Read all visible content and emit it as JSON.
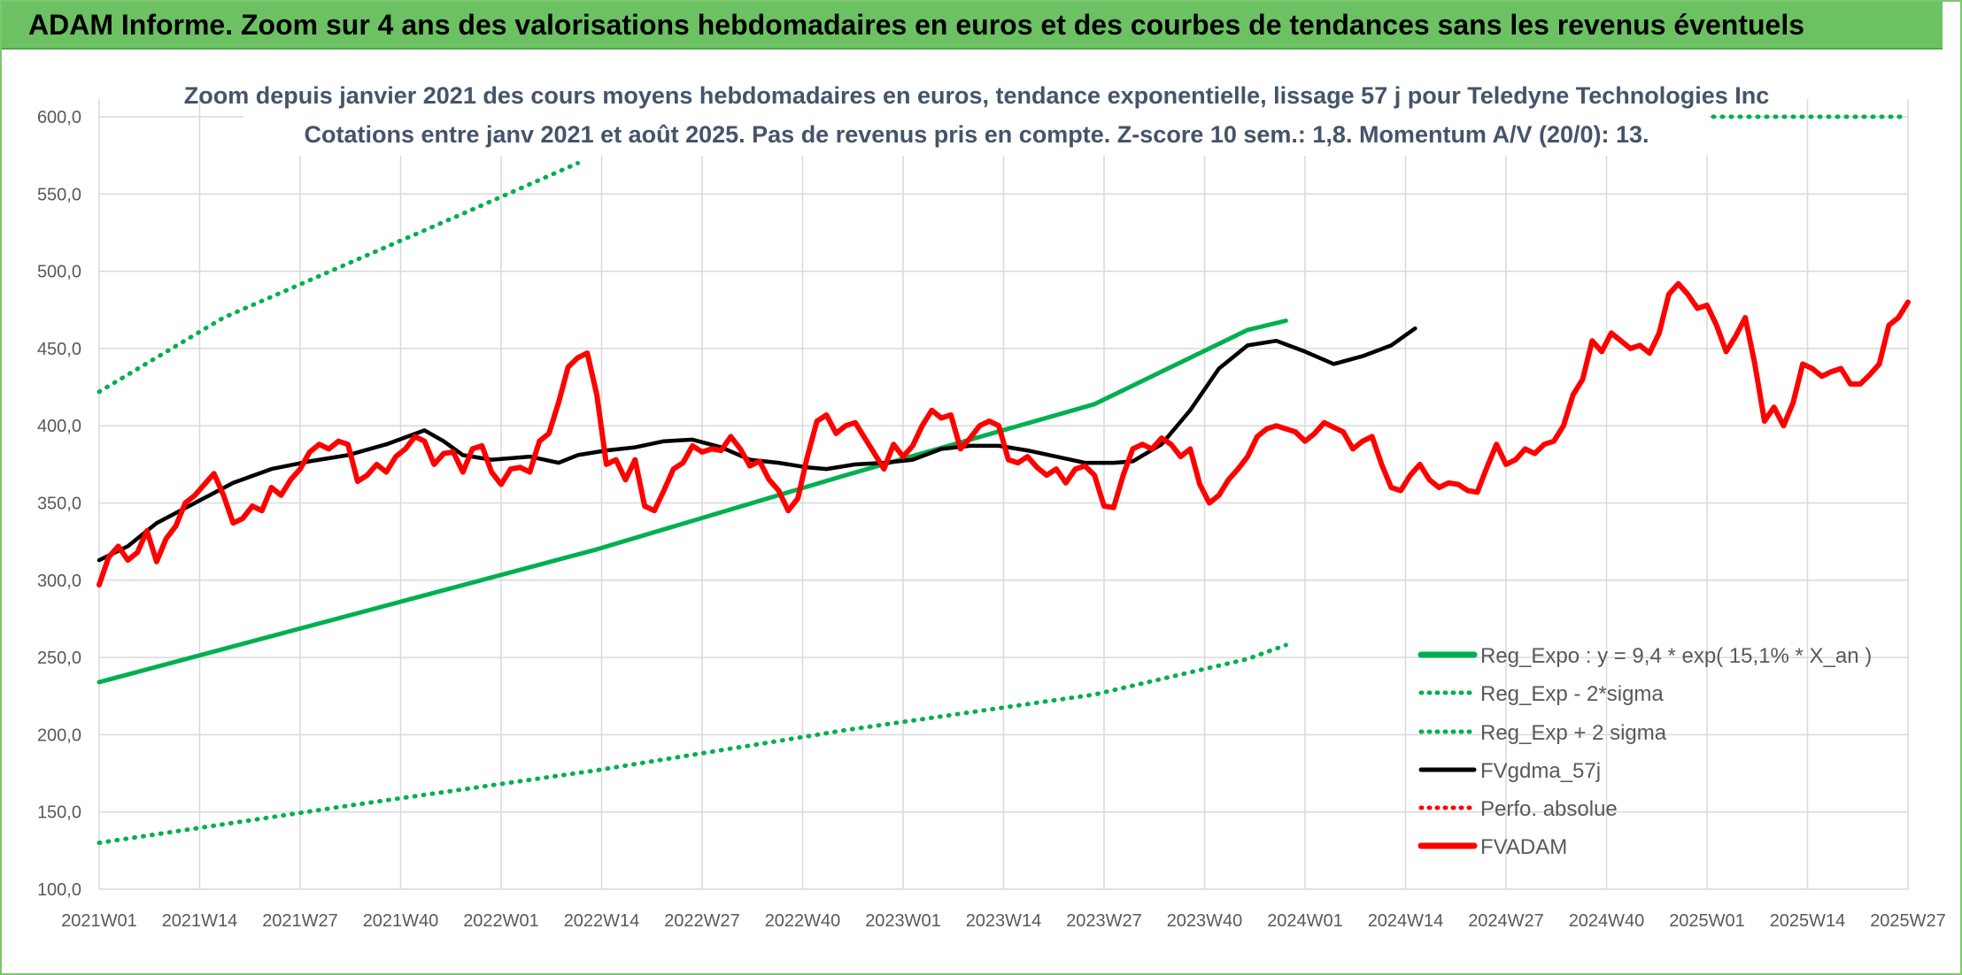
{
  "banner": {
    "title": "ADAM Informe. Zoom sur 4 ans des valorisations hebdomadaires en euros et des courbes de tendances sans les revenus éventuels"
  },
  "colors": {
    "banner": "#6cc163",
    "reg_expo": "#00b050",
    "band": "#00b050",
    "fvgdma": "#000000",
    "fvadam": "#ff0000",
    "perfo": "#ff0000",
    "grid": "#d9d9d9"
  },
  "chart_data": {
    "type": "line",
    "title_line1": "Zoom depuis janvier 2021 des cours moyens hebdomadaires en euros, tendance exponentielle, lissage 57 j pour Teledyne Technologies Inc",
    "title_line2": "Cotations entre janv 2021 et août 2025. Pas de revenus pris en compte. Z-score 10 sem.: 1,8. Momentum A/V (20/0): 13.",
    "ylim": [
      100,
      600
    ],
    "y_ticks": [
      "100,0",
      "150,0",
      "200,0",
      "250,0",
      "300,0",
      "350,0",
      "400,0",
      "450,0",
      "500,0",
      "550,0",
      "600,0"
    ],
    "x_ticks": [
      "2021W01",
      "2021W14",
      "2021W27",
      "2021W40",
      "2022W01",
      "2022W14",
      "2022W27",
      "2022W40",
      "2023W01",
      "2023W14",
      "2023W27",
      "2023W40",
      "2024W01",
      "2024W14",
      "2024W27",
      "2024W40",
      "2025W01",
      "2025W14",
      "2025W27"
    ],
    "legend_position": "bottom-right",
    "series": [
      {
        "name": "Reg_Expo : y = 9,4 * exp( 15,1% * X_an )",
        "style": "solid",
        "color": "#00b050",
        "points": [
          [
            0,
            234
          ],
          [
            52,
            277
          ],
          [
            104,
            320
          ],
          [
            156,
            368
          ],
          [
            208,
            414
          ],
          [
            240,
            462
          ],
          [
            248,
            468
          ]
        ]
      },
      {
        "name": "Reg_Exp - 2*sigma",
        "style": "dotted",
        "color": "#00b050",
        "points": [
          [
            0,
            130
          ],
          [
            52,
            154
          ],
          [
            104,
            177
          ],
          [
            156,
            203
          ],
          [
            208,
            226
          ],
          [
            240,
            249
          ],
          [
            248,
            258
          ]
        ]
      },
      {
        "name": "Reg_Exp + 2 sigma",
        "style": "dotted",
        "color": "#00b050",
        "points": [
          [
            0,
            422
          ],
          [
            26,
            470
          ],
          [
            52,
            505
          ],
          [
            78,
            540
          ],
          [
            100,
            570
          ]
        ]
      },
      {
        "name": "FVgdma_57j",
        "style": "solid",
        "color": "#000000",
        "points": [
          [
            0,
            313
          ],
          [
            6,
            322
          ],
          [
            12,
            337
          ],
          [
            20,
            350
          ],
          [
            28,
            363
          ],
          [
            36,
            372
          ],
          [
            44,
            377
          ],
          [
            52,
            381
          ],
          [
            60,
            388
          ],
          [
            68,
            397
          ],
          [
            72,
            390
          ],
          [
            76,
            381
          ],
          [
            82,
            378
          ],
          [
            90,
            380
          ],
          [
            96,
            376
          ],
          [
            100,
            381
          ],
          [
            106,
            384
          ],
          [
            112,
            386
          ],
          [
            118,
            390
          ],
          [
            124,
            391
          ],
          [
            130,
            386
          ],
          [
            136,
            378
          ],
          [
            142,
            376
          ],
          [
            148,
            373
          ],
          [
            152,
            372
          ],
          [
            158,
            375
          ],
          [
            164,
            376
          ],
          [
            170,
            378
          ],
          [
            176,
            385
          ],
          [
            182,
            387
          ],
          [
            188,
            387
          ],
          [
            194,
            384
          ],
          [
            200,
            380
          ],
          [
            206,
            376
          ],
          [
            212,
            376
          ],
          [
            216,
            377
          ],
          [
            222,
            388
          ],
          [
            228,
            410
          ],
          [
            234,
            437
          ],
          [
            240,
            452
          ],
          [
            246,
            455
          ],
          [
            252,
            448
          ],
          [
            258,
            440
          ],
          [
            264,
            445
          ],
          [
            270,
            452
          ],
          [
            275,
            463
          ]
        ]
      },
      {
        "name": "Perfo. absolue",
        "style": "dotted",
        "color": "#ff0000",
        "points": []
      },
      {
        "name": "FVADAM",
        "style": "solid",
        "color": "#ff0000",
        "points": [
          [
            0,
            297
          ],
          [
            2,
            315
          ],
          [
            4,
            322
          ],
          [
            6,
            313
          ],
          [
            8,
            318
          ],
          [
            10,
            332
          ],
          [
            12,
            312
          ],
          [
            14,
            327
          ],
          [
            16,
            335
          ],
          [
            18,
            350
          ],
          [
            20,
            355
          ],
          [
            22,
            362
          ],
          [
            24,
            369
          ],
          [
            26,
            355
          ],
          [
            28,
            337
          ],
          [
            30,
            340
          ],
          [
            32,
            348
          ],
          [
            34,
            345
          ],
          [
            36,
            360
          ],
          [
            38,
            355
          ],
          [
            40,
            365
          ],
          [
            42,
            372
          ],
          [
            44,
            383
          ],
          [
            46,
            388
          ],
          [
            48,
            385
          ],
          [
            50,
            390
          ],
          [
            52,
            388
          ],
          [
            54,
            364
          ],
          [
            56,
            368
          ],
          [
            58,
            375
          ],
          [
            60,
            370
          ],
          [
            62,
            380
          ],
          [
            64,
            385
          ],
          [
            66,
            393
          ],
          [
            68,
            390
          ],
          [
            70,
            375
          ],
          [
            72,
            382
          ],
          [
            74,
            383
          ],
          [
            76,
            370
          ],
          [
            78,
            385
          ],
          [
            80,
            387
          ],
          [
            82,
            370
          ],
          [
            84,
            362
          ],
          [
            86,
            372
          ],
          [
            88,
            373
          ],
          [
            90,
            370
          ],
          [
            92,
            390
          ],
          [
            94,
            395
          ],
          [
            96,
            415
          ],
          [
            98,
            438
          ],
          [
            100,
            444
          ],
          [
            102,
            447
          ],
          [
            104,
            420
          ],
          [
            106,
            375
          ],
          [
            108,
            378
          ],
          [
            110,
            365
          ],
          [
            112,
            378
          ],
          [
            114,
            348
          ],
          [
            116,
            345
          ],
          [
            118,
            358
          ],
          [
            120,
            372
          ],
          [
            122,
            376
          ],
          [
            124,
            387
          ],
          [
            126,
            383
          ],
          [
            128,
            385
          ],
          [
            130,
            384
          ],
          [
            132,
            393
          ],
          [
            134,
            385
          ],
          [
            136,
            374
          ],
          [
            138,
            377
          ],
          [
            140,
            365
          ],
          [
            142,
            358
          ],
          [
            144,
            345
          ],
          [
            146,
            353
          ],
          [
            148,
            380
          ],
          [
            150,
            403
          ],
          [
            152,
            407
          ],
          [
            154,
            395
          ],
          [
            156,
            400
          ],
          [
            158,
            402
          ],
          [
            160,
            392
          ],
          [
            162,
            382
          ],
          [
            164,
            372
          ],
          [
            166,
            388
          ],
          [
            168,
            380
          ],
          [
            170,
            387
          ],
          [
            172,
            400
          ],
          [
            174,
            410
          ],
          [
            176,
            405
          ],
          [
            178,
            407
          ],
          [
            180,
            385
          ],
          [
            182,
            392
          ],
          [
            184,
            400
          ],
          [
            186,
            403
          ],
          [
            188,
            400
          ],
          [
            190,
            378
          ],
          [
            192,
            376
          ],
          [
            194,
            380
          ],
          [
            196,
            373
          ],
          [
            198,
            368
          ],
          [
            200,
            372
          ],
          [
            202,
            363
          ],
          [
            204,
            372
          ],
          [
            206,
            374
          ],
          [
            208,
            368
          ],
          [
            210,
            348
          ],
          [
            212,
            347
          ],
          [
            214,
            368
          ],
          [
            216,
            385
          ],
          [
            218,
            388
          ],
          [
            220,
            385
          ],
          [
            222,
            392
          ],
          [
            224,
            388
          ],
          [
            226,
            380
          ],
          [
            228,
            385
          ],
          [
            230,
            362
          ],
          [
            232,
            350
          ],
          [
            234,
            355
          ],
          [
            236,
            365
          ],
          [
            238,
            372
          ],
          [
            240,
            380
          ],
          [
            242,
            393
          ],
          [
            244,
            398
          ],
          [
            246,
            400
          ],
          [
            248,
            398
          ],
          [
            250,
            396
          ],
          [
            252,
            390
          ],
          [
            254,
            395
          ],
          [
            256,
            402
          ],
          [
            258,
            399
          ],
          [
            260,
            396
          ],
          [
            262,
            385
          ],
          [
            264,
            390
          ],
          [
            266,
            393
          ],
          [
            268,
            375
          ],
          [
            270,
            360
          ],
          [
            272,
            358
          ],
          [
            274,
            368
          ],
          [
            276,
            375
          ],
          [
            278,
            365
          ],
          [
            280,
            360
          ],
          [
            282,
            363
          ],
          [
            284,
            362
          ],
          [
            286,
            358
          ],
          [
            288,
            357
          ],
          [
            290,
            373
          ],
          [
            292,
            388
          ],
          [
            294,
            375
          ],
          [
            296,
            378
          ],
          [
            298,
            385
          ],
          [
            300,
            382
          ],
          [
            302,
            388
          ],
          [
            304,
            390
          ],
          [
            306,
            400
          ],
          [
            308,
            420
          ],
          [
            310,
            430
          ],
          [
            312,
            455
          ],
          [
            314,
            448
          ],
          [
            316,
            460
          ],
          [
            318,
            455
          ],
          [
            320,
            450
          ],
          [
            322,
            452
          ],
          [
            324,
            447
          ],
          [
            326,
            460
          ],
          [
            328,
            485
          ],
          [
            330,
            492
          ],
          [
            332,
            485
          ],
          [
            334,
            476
          ],
          [
            336,
            478
          ],
          [
            338,
            465
          ],
          [
            340,
            448
          ],
          [
            342,
            458
          ],
          [
            344,
            470
          ],
          [
            346,
            440
          ],
          [
            348,
            403
          ],
          [
            350,
            412
          ],
          [
            352,
            400
          ],
          [
            354,
            415
          ],
          [
            356,
            440
          ],
          [
            358,
            437
          ],
          [
            360,
            432
          ],
          [
            362,
            435
          ],
          [
            364,
            437
          ],
          [
            366,
            427
          ],
          [
            368,
            427
          ],
          [
            370,
            433
          ],
          [
            372,
            440
          ],
          [
            374,
            465
          ],
          [
            376,
            470
          ],
          [
            378,
            480
          ]
        ]
      }
    ]
  }
}
